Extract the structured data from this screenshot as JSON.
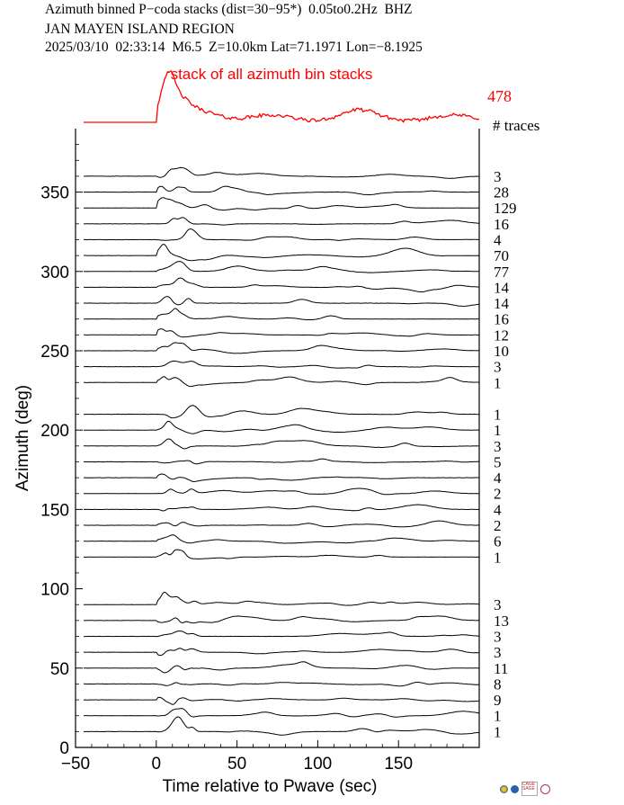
{
  "header": {
    "line1": "Azimuth binned P−coda stacks (dist=30−95*)  0.05to0.2Hz  BHZ",
    "line2": "JAN MAYEN ISLAND REGION",
    "line3": "2025/03/10  02:33:14  M6.5  Z=10.0km Lat=71.1971 Lon=−8.1925"
  },
  "chart_data": {
    "type": "line",
    "xlabel": "Time relative to Pwave (sec)",
    "ylabel": "Azimuth (deg)",
    "xlim": [
      -50,
      200
    ],
    "ylim": [
      0,
      390
    ],
    "xticks": [
      -50,
      0,
      50,
      100,
      150
    ],
    "yticks": [
      0,
      50,
      100,
      150,
      200,
      250,
      300,
      350
    ],
    "stack": {
      "label": "stack of all azimuth bin stacks",
      "count": "478",
      "color": "#ff0000"
    },
    "count_header": "# traces",
    "bins": [
      {
        "az": 360,
        "n": "3"
      },
      {
        "az": 350,
        "n": "28"
      },
      {
        "az": 340,
        "n": "129"
      },
      {
        "az": 330,
        "n": "16"
      },
      {
        "az": 320,
        "n": "4"
      },
      {
        "az": 310,
        "n": "70"
      },
      {
        "az": 300,
        "n": "77"
      },
      {
        "az": 290,
        "n": "14"
      },
      {
        "az": 280,
        "n": "14"
      },
      {
        "az": 270,
        "n": "16"
      },
      {
        "az": 260,
        "n": "12"
      },
      {
        "az": 250,
        "n": "10"
      },
      {
        "az": 240,
        "n": "3"
      },
      {
        "az": 230,
        "n": "1"
      },
      {
        "az": 210,
        "n": "1"
      },
      {
        "az": 200,
        "n": "1"
      },
      {
        "az": 190,
        "n": "3"
      },
      {
        "az": 180,
        "n": "5"
      },
      {
        "az": 170,
        "n": "4"
      },
      {
        "az": 160,
        "n": "2"
      },
      {
        "az": 150,
        "n": "4"
      },
      {
        "az": 140,
        "n": "2"
      },
      {
        "az": 130,
        "n": "6"
      },
      {
        "az": 120,
        "n": "1"
      },
      {
        "az": 90,
        "n": "3"
      },
      {
        "az": 80,
        "n": "13"
      },
      {
        "az": 70,
        "n": "3"
      },
      {
        "az": 60,
        "n": "3"
      },
      {
        "az": 50,
        "n": "11"
      },
      {
        "az": 40,
        "n": "8"
      },
      {
        "az": 30,
        "n": "9"
      },
      {
        "az": 20,
        "n": "1"
      },
      {
        "az": 10,
        "n": "1"
      }
    ]
  },
  "logos": [
    "iris-logo",
    "nsf-logo",
    "cage-sage-logo",
    "earthscope-logo"
  ]
}
